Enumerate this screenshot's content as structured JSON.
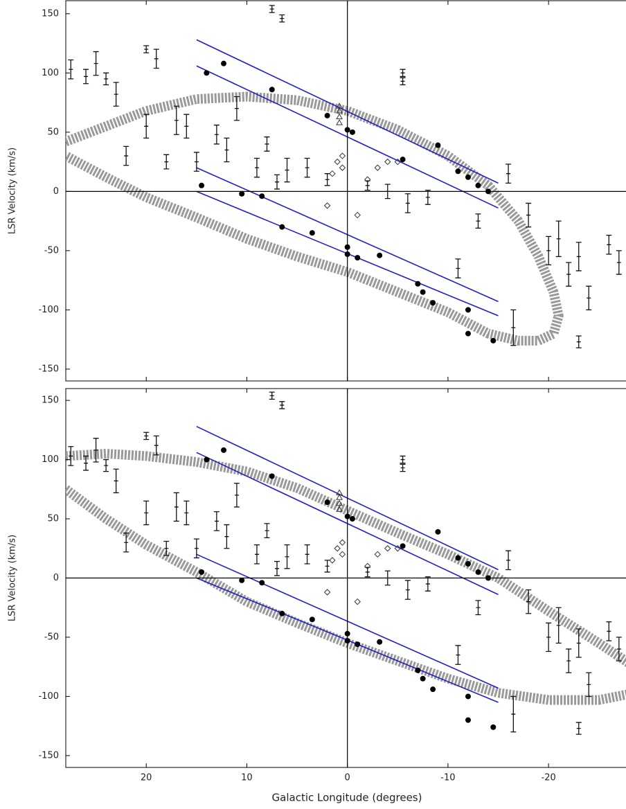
{
  "chart_data": [
    {
      "type": "scatter",
      "ylabel": "LSR Velocity  (km/s)",
      "xlim": [
        28,
        -27.7
      ],
      "ylim": [
        -160,
        161
      ],
      "xticks": [
        20,
        10,
        0,
        -10,
        -20
      ],
      "yticks": [
        150,
        100,
        50,
        0,
        -50,
        -100,
        -150
      ],
      "series": [
        {
          "marker": "band",
          "color": "#999999",
          "x": [
            28,
            24,
            20,
            15,
            10,
            5,
            0,
            -5,
            -10,
            -14,
            -17,
            -19,
            -20.5,
            -21,
            -20.5,
            -19,
            -17,
            -14,
            -10,
            -5,
            0,
            5,
            10,
            15,
            20,
            24,
            28
          ],
          "values": [
            42,
            55,
            68,
            78,
            80,
            77,
            68,
            52,
            30,
            5,
            -25,
            -55,
            -85,
            -105,
            -120,
            -126,
            -126,
            -120,
            -102,
            -85,
            -68,
            -55,
            -40,
            -22,
            -5,
            12,
            30
          ]
        },
        {
          "marker": "line",
          "color": "#2020c0",
          "x": [
            15,
            -15
          ],
          "values": [
            128,
            7
          ]
        },
        {
          "marker": "line",
          "color": "#2020c0",
          "x": [
            15,
            -15
          ],
          "values": [
            106,
            -14
          ]
        },
        {
          "marker": "line",
          "color": "#2020c0",
          "x": [
            15,
            -15
          ],
          "values": [
            20,
            -93
          ]
        },
        {
          "marker": "line",
          "color": "#2020c0",
          "x": [
            15,
            -15
          ],
          "values": [
            0,
            -105
          ]
        },
        {
          "marker": "errorbar",
          "color": "#111111",
          "x": [
            27.5,
            26,
            25,
            24,
            23,
            20,
            19,
            17,
            16,
            13,
            11,
            8,
            6,
            4,
            2,
            -2,
            -4,
            -6,
            -8,
            -11,
            -13,
            -16,
            -18,
            -20,
            -21,
            -22,
            -23,
            -24,
            -26,
            -27,
            22,
            20,
            18,
            15,
            12,
            9,
            7,
            -5.5,
            -16.5,
            -23,
            7.5,
            6.5,
            -5.5
          ],
          "values": [
            103,
            97,
            108,
            95,
            82,
            120,
            112,
            60,
            55,
            48,
            70,
            40,
            18,
            20,
            10,
            5,
            0,
            -10,
            -5,
            -65,
            -25,
            15,
            -20,
            -50,
            -40,
            -70,
            -55,
            -90,
            -45,
            -60,
            30,
            55,
            25,
            25,
            35,
            20,
            8,
            100,
            -115,
            -127,
            154,
            146,
            93
          ],
          "errors": [
            8,
            6,
            10,
            5,
            10,
            3,
            8,
            12,
            10,
            8,
            10,
            6,
            10,
            8,
            5,
            4,
            6,
            8,
            6,
            8,
            6,
            8,
            10,
            12,
            15,
            10,
            12,
            10,
            8,
            10,
            8,
            10,
            6,
            8,
            10,
            8,
            6,
            3,
            15,
            5,
            3,
            3,
            3
          ]
        },
        {
          "marker": "triangle",
          "color": "#333333",
          "x": [
            0.8,
            0.8,
            0.8,
            0.8
          ],
          "values": [
            72,
            68,
            63,
            58
          ]
        },
        {
          "marker": "diamond",
          "color": "#333333",
          "x": [
            1,
            0.5,
            1.5,
            -2,
            -3,
            -4,
            -5,
            2,
            -1,
            0.5
          ],
          "values": [
            25,
            20,
            15,
            10,
            20,
            25,
            25,
            -12,
            -20,
            30
          ]
        },
        {
          "marker": "circle",
          "color": "#000000",
          "x": [
            14,
            12.3,
            7.5,
            2,
            -9,
            -5.5,
            -11,
            -12,
            -13,
            -14,
            14.5,
            10.5,
            8.5,
            6.5,
            3.5,
            0,
            -1,
            -3.2,
            -7,
            -8.5,
            -12,
            -12,
            -14.5,
            -7.5,
            0,
            0,
            -0.5
          ],
          "values": [
            100,
            108,
            86,
            64,
            39,
            27,
            17,
            12,
            5,
            0,
            5,
            -2,
            -4,
            -30,
            -35,
            -47,
            -56,
            -54,
            -78,
            -94,
            -100,
            -120,
            -126,
            -85,
            -53,
            52,
            50
          ]
        }
      ]
    },
    {
      "type": "scatter",
      "ylabel": "LSR Velocity  (km/s)",
      "xlabel": "Galactic Longitude (degrees)",
      "xlim": [
        28,
        -27.7
      ],
      "ylim": [
        -160,
        160
      ],
      "xticks": [
        20,
        10,
        0,
        -10,
        -20
      ],
      "yticks": [
        150,
        100,
        50,
        0,
        -50,
        -100,
        -150
      ],
      "series": [
        {
          "marker": "band",
          "color": "#999999",
          "x": [
            28,
            24,
            20,
            15,
            10,
            5,
            0,
            -5,
            -10,
            -15,
            -20,
            -25,
            -28
          ],
          "values": [
            103,
            105,
            103,
            98,
            90,
            76,
            57,
            38,
            20,
            0,
            -28,
            -55,
            -72
          ]
        },
        {
          "marker": "band",
          "color": "#999999",
          "x": [
            28,
            24,
            20,
            15,
            10,
            5,
            0,
            -5,
            -10,
            -15,
            -20,
            -25,
            -28
          ],
          "values": [
            75,
            50,
            28,
            5,
            -20,
            -38,
            -55,
            -70,
            -85,
            -97,
            -103,
            -103,
            -98
          ]
        },
        {
          "marker": "line",
          "color": "#2020c0",
          "x": [
            15,
            -15
          ],
          "values": [
            128,
            7
          ]
        },
        {
          "marker": "line",
          "color": "#2020c0",
          "x": [
            15,
            -15
          ],
          "values": [
            106,
            -14
          ]
        },
        {
          "marker": "line",
          "color": "#2020c0",
          "x": [
            15,
            -15
          ],
          "values": [
            20,
            -93
          ]
        },
        {
          "marker": "line",
          "color": "#2020c0",
          "x": [
            15,
            -15
          ],
          "values": [
            0,
            -105
          ]
        },
        {
          "marker": "errorbar",
          "color": "#111111",
          "x": [
            27.5,
            26,
            25,
            24,
            23,
            20,
            19,
            17,
            16,
            13,
            11,
            8,
            6,
            4,
            2,
            -2,
            -4,
            -6,
            -8,
            -11,
            -13,
            -16,
            -18,
            -20,
            -21,
            -22,
            -23,
            -24,
            -26,
            -27,
            22,
            20,
            18,
            15,
            12,
            9,
            7,
            -5.5,
            -16.5,
            -23,
            7.5,
            6.5,
            -5.5
          ],
          "values": [
            103,
            97,
            108,
            95,
            82,
            120,
            112,
            60,
            55,
            48,
            70,
            40,
            18,
            20,
            10,
            5,
            0,
            -10,
            -5,
            -65,
            -25,
            15,
            -20,
            -50,
            -40,
            -70,
            -55,
            -90,
            -45,
            -60,
            30,
            55,
            25,
            25,
            35,
            20,
            8,
            100,
            -115,
            -127,
            154,
            146,
            93
          ],
          "errors": [
            8,
            6,
            10,
            5,
            10,
            3,
            8,
            12,
            10,
            8,
            10,
            6,
            10,
            8,
            5,
            4,
            6,
            8,
            6,
            8,
            6,
            8,
            10,
            12,
            15,
            10,
            12,
            10,
            8,
            10,
            8,
            10,
            6,
            8,
            10,
            8,
            6,
            3,
            15,
            5,
            3,
            3,
            3
          ]
        },
        {
          "marker": "triangle",
          "color": "#333333",
          "x": [
            0.8,
            0.8,
            0.8,
            0.8
          ],
          "values": [
            72,
            68,
            63,
            58
          ]
        },
        {
          "marker": "diamond",
          "color": "#333333",
          "x": [
            1,
            0.5,
            1.5,
            -2,
            -3,
            -4,
            -5,
            2,
            -1,
            0.5
          ],
          "values": [
            25,
            20,
            15,
            10,
            20,
            25,
            25,
            -12,
            -20,
            30
          ]
        },
        {
          "marker": "circle",
          "color": "#000000",
          "x": [
            14,
            12.3,
            7.5,
            2,
            -9,
            -5.5,
            -11,
            -12,
            -13,
            -14,
            14.5,
            10.5,
            8.5,
            6.5,
            3.5,
            0,
            -1,
            -3.2,
            -7,
            -8.5,
            -12,
            -12,
            -14.5,
            -7.5,
            0,
            0,
            -0.5
          ],
          "values": [
            100,
            108,
            86,
            64,
            39,
            27,
            17,
            12,
            5,
            0,
            5,
            -2,
            -4,
            -30,
            -35,
            -47,
            -56,
            -54,
            -78,
            -94,
            -100,
            -120,
            -126,
            -85,
            -53,
            52,
            50
          ]
        }
      ]
    }
  ]
}
